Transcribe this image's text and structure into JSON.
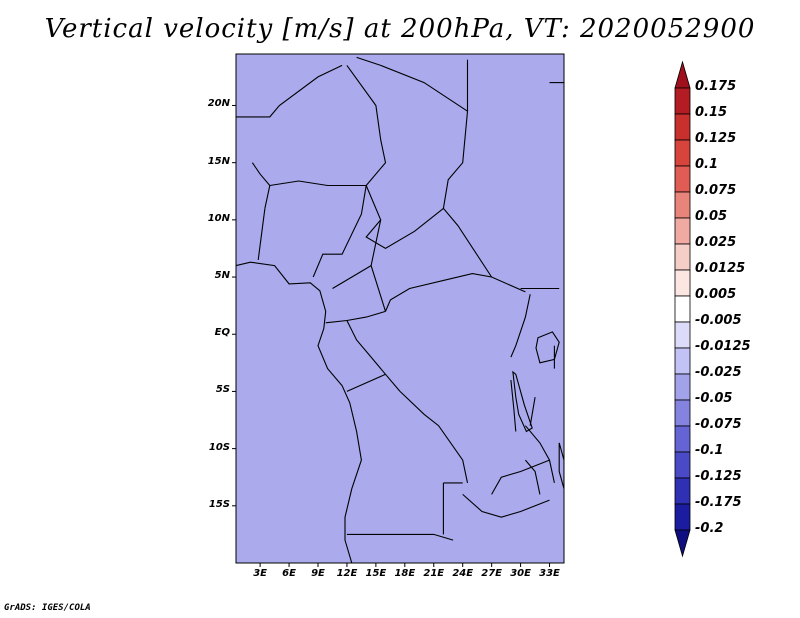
{
  "title": "Vertical velocity [m/s] at 200hPa, VT: 2020052900",
  "footer": "GrADS: IGES/COLA",
  "map": {
    "lat_labels": [
      "20N",
      "15N",
      "10N",
      "5N",
      "EQ",
      "5S",
      "10S",
      "15S"
    ],
    "lon_labels": [
      "3E",
      "6E",
      "9E",
      "12E",
      "15E",
      "18E",
      "21E",
      "24E",
      "27E",
      "30E",
      "33E"
    ],
    "lat_values": [
      20,
      15,
      10,
      5,
      0,
      -5,
      -10,
      -15
    ],
    "lon_values": [
      3,
      6,
      9,
      12,
      15,
      18,
      21,
      24,
      27,
      30,
      33
    ],
    "lon_range": [
      0.5,
      34.5
    ],
    "lat_range": [
      -20,
      24.5
    ]
  },
  "colorbar": {
    "labels": [
      "0.175",
      "0.15",
      "0.125",
      "0.1",
      "0.075",
      "0.05",
      "0.025",
      "0.0125",
      "0.005",
      "-0.005",
      "-0.0125",
      "-0.025",
      "-0.05",
      "-0.075",
      "-0.1",
      "-0.125",
      "-0.175",
      "-0.2"
    ],
    "colors": [
      "#a0101c",
      "#b41c24",
      "#c8302e",
      "#d6443c",
      "#e05c54",
      "#e8847a",
      "#f0aaa2",
      "#f6cec8",
      "#fce6e2",
      "#ffffff",
      "#dcdcfa",
      "#c2c2f4",
      "#a2a2ea",
      "#8484e0",
      "#6464d4",
      "#4a4ac6",
      "#3030b4",
      "#1c1ca0",
      "#0e0e80"
    ]
  }
}
